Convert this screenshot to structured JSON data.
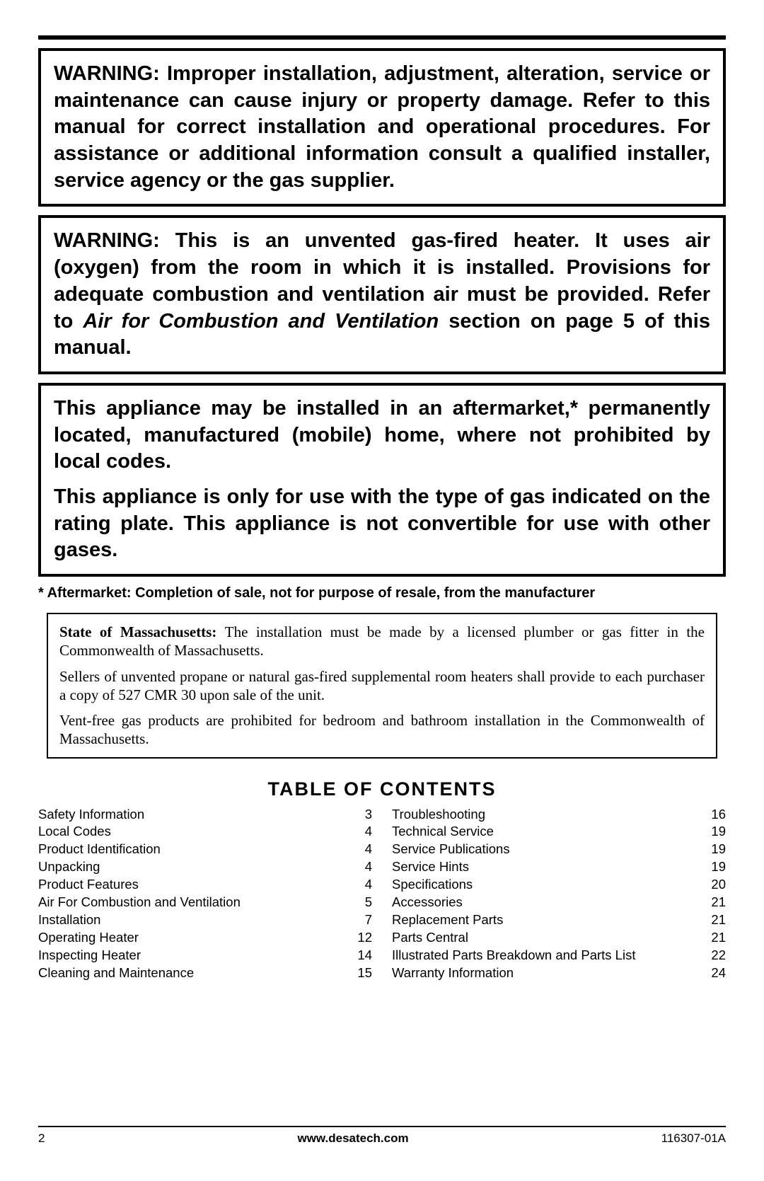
{
  "warnings": {
    "box1": "WARNING: Improper installation, adjustment, alteration, service or maintenance can cause injury or property damage. Refer to this manual for correct installation and operational procedures. For assistance or additional information consult a qualified installer, service agency or the gas supplier.",
    "box2_pre": "WARNING: This is an unvented gas-fired heater. It uses air (oxygen) from the room in which it is installed. Provisions for adequate combustion and ventilation air must be provided. Refer to ",
    "box2_italic": "Air for Combustion and Ventilation",
    "box2_post": " section on page 5 of this manual.",
    "box3_p1": "This appliance may be installed in an aftermarket,* permanently located, manufactured (mobile) home, where not prohibited by local codes.",
    "box3_p2": "This appliance is only for use with the type of gas indicated on the rating plate. This appliance is not convertible for use with other gases."
  },
  "footnote": "* Aftermarket: Completion of sale, not for purpose of resale, from the manufacturer",
  "state": {
    "p1_bold": "State of Massachusetts: ",
    "p1_rest": "The installation must be made by a licensed plumber or gas fitter in the Commonwealth of Massachusetts.",
    "p2": "Sellers of unvented propane or natural gas-fired supplemental room heaters shall provide to each purchaser a copy of 527 CMR 30 upon sale of the unit.",
    "p3": "Vent-free gas products are prohibited for bedroom and bathroom installation in the Commonwealth of Massachusetts."
  },
  "toc": {
    "heading": "TABLE OF CONTENTS",
    "left": [
      {
        "label": "Safety Information",
        "page": "3"
      },
      {
        "label": "Local Codes",
        "page": "4"
      },
      {
        "label": "Product Identification",
        "page": "4"
      },
      {
        "label": "Unpacking",
        "page": "4"
      },
      {
        "label": "Product Features",
        "page": "4"
      },
      {
        "label": "Air For Combustion and Ventilation",
        "page": "5"
      },
      {
        "label": "Installation",
        "page": "7"
      },
      {
        "label": "Operating Heater",
        "page": "12"
      },
      {
        "label": "Inspecting Heater",
        "page": "14"
      },
      {
        "label": "Cleaning and Maintenance",
        "page": "15"
      }
    ],
    "right": [
      {
        "label": "Troubleshooting",
        "page": "16"
      },
      {
        "label": "Technical Service",
        "page": "19"
      },
      {
        "label": "Service Publications",
        "page": "19"
      },
      {
        "label": "Service Hints",
        "page": "19"
      },
      {
        "label": "Specifications",
        "page": "20"
      },
      {
        "label": "Accessories",
        "page": "21"
      },
      {
        "label": "Replacement Parts",
        "page": "21"
      },
      {
        "label": "Parts Central",
        "page": "21"
      },
      {
        "label": "Illustrated Parts Breakdown and Parts List",
        "page": "22"
      },
      {
        "label": "Warranty Information",
        "page": "24"
      }
    ]
  },
  "footer": {
    "page_number": "2",
    "url": "www.desatech.com",
    "doc_number": "116307-01A"
  }
}
